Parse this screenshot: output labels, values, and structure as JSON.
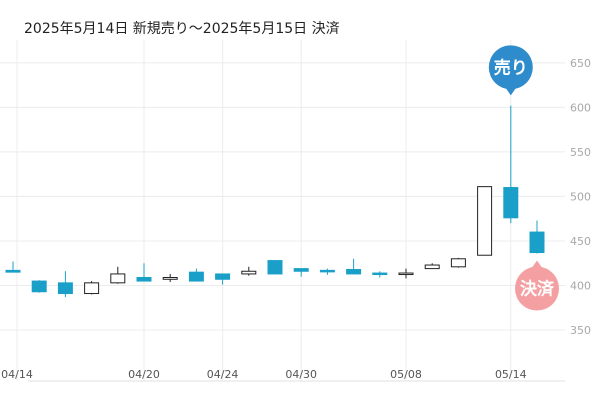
{
  "chart_data": {
    "type": "candlestick",
    "title": "2025年5月14日 新規売り～2025年5月15日 決済",
    "y_ticks": [
      "650",
      "600",
      "550",
      "500",
      "450",
      "400",
      "350"
    ],
    "y_tick_values": [
      650,
      600,
      550,
      500,
      450,
      400,
      350
    ],
    "ylim": [
      322,
      670
    ],
    "x_ticks": [
      {
        "label": "04/14",
        "index": 0
      },
      {
        "label": "04/20",
        "index": 5
      },
      {
        "label": "04/24",
        "index": 8
      },
      {
        "label": "04/30",
        "index": 11
      },
      {
        "label": "05/08",
        "index": 15
      },
      {
        "label": "05/14",
        "index": 19
      }
    ],
    "grid": true,
    "candles": [
      {
        "open": 417,
        "close": 415,
        "high": 427,
        "low": 415
      },
      {
        "open": 405,
        "close": 393,
        "high": 406,
        "low": 392
      },
      {
        "open": 403,
        "close": 391,
        "high": 416,
        "low": 387
      },
      {
        "open": 391,
        "close": 403,
        "high": 405,
        "low": 390
      },
      {
        "open": 403,
        "close": 413,
        "high": 421,
        "low": 402
      },
      {
        "open": 409,
        "close": 405,
        "high": 425,
        "low": 405
      },
      {
        "open": 407,
        "close": 409,
        "high": 413,
        "low": 404
      },
      {
        "open": 415,
        "close": 405,
        "high": 419,
        "low": 405
      },
      {
        "open": 413,
        "close": 407,
        "high": 413,
        "low": 401
      },
      {
        "open": 413,
        "close": 416,
        "high": 421,
        "low": 411
      },
      {
        "open": 428,
        "close": 413,
        "high": 428,
        "low": 413
      },
      {
        "open": 419,
        "close": 416,
        "high": 419,
        "low": 410
      },
      {
        "open": 417,
        "close": 416,
        "high": 419,
        "low": 412
      },
      {
        "open": 418,
        "close": 413,
        "high": 430,
        "low": 413
      },
      {
        "open": 414,
        "close": 413,
        "high": 416,
        "low": 409
      },
      {
        "open": 414,
        "close": 414,
        "high": 419,
        "low": 408
      },
      {
        "open": 419,
        "close": 423,
        "high": 425,
        "low": 420
      },
      {
        "open": 421,
        "close": 430,
        "high": 431,
        "low": 420
      },
      {
        "open": 434,
        "close": 511,
        "high": 511,
        "low": 434
      },
      {
        "open": 510,
        "close": 476,
        "high": 602,
        "low": 470
      },
      {
        "open": 460,
        "close": 437,
        "high": 473,
        "low": 436
      }
    ],
    "colors": {
      "down": "#1aa0c8",
      "up": "#ffffff",
      "outline": "#222222",
      "grid": "#ececec"
    },
    "markers": [
      {
        "label": "売り",
        "index": 19,
        "price": 600,
        "color": "#2f8ccc",
        "position": "above"
      },
      {
        "label": "決済",
        "index": 20,
        "price": 437,
        "color": "#f4a0a2",
        "position": "below"
      }
    ]
  }
}
